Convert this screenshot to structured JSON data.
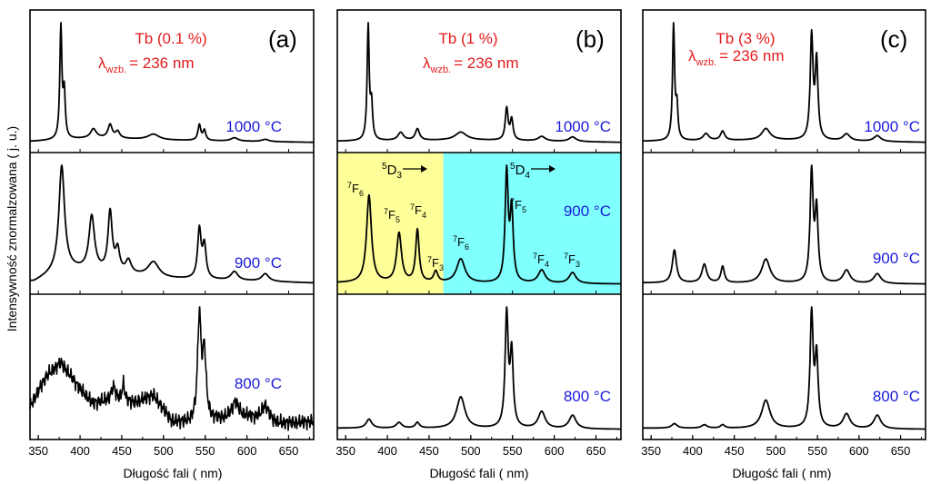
{
  "figure": {
    "ylabel": "Intensywność znormalzowana  ( j. u.)",
    "colors": {
      "curve": "#000000",
      "title": "#e41a1c",
      "temperature": "#1a1ad8",
      "region_5D3": "#ffff99",
      "region_5D4": "#80ffff"
    }
  },
  "chart_data": [
    {
      "type": "line",
      "panel": "(a)",
      "title": "Tb (0.1 %)",
      "excitation": {
        "symbol": "λ",
        "subscript": "wzb.",
        "value": "= 236 nm"
      },
      "xlabel": "Długość fali  ( nm)",
      "xlim": [
        340,
        680
      ],
      "xticks": [
        350,
        400,
        450,
        500,
        550,
        600,
        650
      ],
      "series": [
        {
          "name": "1000 °C",
          "temp": "1000",
          "unit": "°C",
          "peaks": [
            [
              377,
              1.0,
              1.5
            ],
            [
              381,
              0.4,
              1.5
            ],
            [
              416,
              0.08,
              4
            ],
            [
              436,
              0.12,
              3
            ],
            [
              445,
              0.06,
              3
            ],
            [
              488,
              0.05,
              8
            ],
            [
              543,
              0.14,
              2
            ],
            [
              549,
              0.09,
              2
            ],
            [
              585,
              0.03,
              5
            ],
            [
              622,
              0.02,
              5
            ]
          ],
          "baseline": [
            [
              345,
              0.02
            ],
            [
              420,
              0.05
            ],
            [
              500,
              0.03
            ],
            [
              680,
              0.01
            ]
          ]
        },
        {
          "name": "900 °C",
          "temp": "900",
          "unit": "°C",
          "peaks": [
            [
              378,
              0.95,
              4
            ],
            [
              414,
              0.5,
              4
            ],
            [
              436,
              0.55,
              3
            ],
            [
              445,
              0.2,
              3
            ],
            [
              458,
              0.12,
              4
            ],
            [
              488,
              0.14,
              8
            ],
            [
              543,
              0.45,
              2.5
            ],
            [
              549,
              0.3,
              2.5
            ],
            [
              585,
              0.08,
              5
            ],
            [
              622,
              0.07,
              5
            ]
          ],
          "baseline": [
            [
              345,
              0.03
            ],
            [
              380,
              0.15
            ],
            [
              420,
              0.12
            ],
            [
              500,
              0.06
            ],
            [
              680,
              0.02
            ]
          ]
        },
        {
          "name": "800 °C",
          "temp": "800",
          "unit": "°C",
          "peaks": [
            [
              543,
              0.95,
              2.5
            ],
            [
              549,
              0.6,
              2.5
            ],
            [
              586,
              0.15,
              5
            ],
            [
              622,
              0.14,
              5
            ],
            [
              440,
              0.12,
              3
            ],
            [
              452,
              0.15,
              2
            ]
          ],
          "baseline": [
            [
              340,
              0.22
            ],
            [
              360,
              0.5
            ],
            [
              377,
              0.62
            ],
            [
              400,
              0.38
            ],
            [
              415,
              0.25
            ],
            [
              440,
              0.28
            ],
            [
              465,
              0.25
            ],
            [
              488,
              0.32
            ],
            [
              510,
              0.08
            ],
            [
              530,
              0.06
            ],
            [
              600,
              0.12
            ],
            [
              640,
              0.06
            ],
            [
              680,
              0.08
            ]
          ],
          "noisy": true
        }
      ]
    },
    {
      "type": "line",
      "panel": "(b)",
      "title": "Tb (1 %)",
      "excitation": {
        "symbol": "λ",
        "subscript": "wzb.",
        "value": "= 236 nm"
      },
      "xlabel": "Długość fali  ( nm)",
      "xlim": [
        340,
        680
      ],
      "xticks": [
        350,
        400,
        450,
        500,
        550,
        600,
        650
      ],
      "regions": [
        {
          "label": "5D3",
          "from": 340,
          "to": 467
        },
        {
          "label": "5D4",
          "from": 467,
          "to": 680
        }
      ],
      "series": [
        {
          "name": "1000 °C",
          "temp": "1000",
          "unit": "°C",
          "peaks": [
            [
              377,
              1.0,
              1.5
            ],
            [
              381,
              0.3,
              1.5
            ],
            [
              416,
              0.07,
              4
            ],
            [
              436,
              0.1,
              3
            ],
            [
              488,
              0.07,
              8
            ],
            [
              543,
              0.28,
              2
            ],
            [
              549,
              0.18,
              2
            ],
            [
              585,
              0.04,
              5
            ],
            [
              622,
              0.04,
              5
            ]
          ],
          "baseline": [
            [
              345,
              0.02
            ],
            [
              500,
              0.03
            ],
            [
              680,
              0.01
            ]
          ]
        },
        {
          "name": "900 °C",
          "temp": "900",
          "unit": "°C",
          "peaks": [
            [
              378,
              0.8,
              3.5
            ],
            [
              414,
              0.45,
              3.5
            ],
            [
              436,
              0.48,
              2.5
            ],
            [
              458,
              0.1,
              3
            ],
            [
              488,
              0.22,
              6
            ],
            [
              543,
              1.0,
              2.2
            ],
            [
              549,
              0.65,
              2.2
            ],
            [
              585,
              0.12,
              5
            ],
            [
              622,
              0.1,
              5
            ]
          ],
          "baseline": [
            [
              345,
              0.02
            ],
            [
              680,
              0.01
            ]
          ]
        },
        {
          "name": "800 °C",
          "temp": "800",
          "unit": "°C",
          "peaks": [
            [
              378,
              0.08,
              4
            ],
            [
              414,
              0.05,
              4
            ],
            [
              436,
              0.05,
              3
            ],
            [
              488,
              0.28,
              6
            ],
            [
              543,
              1.0,
              2.2
            ],
            [
              549,
              0.65,
              2.2
            ],
            [
              585,
              0.15,
              5
            ],
            [
              622,
              0.12,
              5
            ]
          ],
          "baseline": [
            [
              345,
              0.02
            ],
            [
              680,
              0.01
            ]
          ]
        }
      ],
      "annotations": {
        "d3": {
          "sup": "5",
          "main": "D",
          "sub": "3"
        },
        "d4": {
          "sup": "5",
          "main": "D",
          "sub": "4"
        },
        "f6a": {
          "sup": "7",
          "main": "F",
          "sub": "6"
        },
        "f5a": {
          "sup": "7",
          "main": "F",
          "sub": "5"
        },
        "f4a": {
          "sup": "7",
          "main": "F",
          "sub": "4"
        },
        "f3a": {
          "sup": "7",
          "main": "F",
          "sub": "3"
        },
        "f6b": {
          "sup": "7",
          "main": "F",
          "sub": "6"
        },
        "f5b": {
          "sup": "7",
          "main": "F",
          "sub": "5"
        },
        "f4b": {
          "sup": "7",
          "main": "F",
          "sub": "4"
        },
        "f3b": {
          "sup": "7",
          "main": "F",
          "sub": "3"
        }
      }
    },
    {
      "type": "line",
      "panel": "(c)",
      "title": "Tb (3 %)",
      "excitation": {
        "symbol": "λ",
        "subscript": "wzb.",
        "value": "= 236 nm"
      },
      "xlabel": "Długość fali  ( nm)",
      "xlim": [
        340,
        680
      ],
      "xticks": [
        350,
        400,
        450,
        500,
        550,
        600,
        650
      ],
      "series": [
        {
          "name": "1000 °C",
          "temp": "1000",
          "unit": "°C",
          "peaks": [
            [
              377,
              1.0,
              1.5
            ],
            [
              381,
              0.28,
              1.5
            ],
            [
              416,
              0.06,
              4
            ],
            [
              436,
              0.08,
              3
            ],
            [
              488,
              0.1,
              6
            ],
            [
              543,
              0.9,
              2
            ],
            [
              549,
              0.68,
              2
            ],
            [
              585,
              0.06,
              5
            ],
            [
              622,
              0.05,
              5
            ]
          ],
          "baseline": [
            [
              345,
              0.02
            ],
            [
              500,
              0.03
            ],
            [
              680,
              0.01
            ]
          ]
        },
        {
          "name": "900 °C",
          "temp": "900",
          "unit": "°C",
          "peaks": [
            [
              378,
              0.3,
              3
            ],
            [
              414,
              0.17,
              3.5
            ],
            [
              436,
              0.15,
              2.5
            ],
            [
              488,
              0.22,
              6
            ],
            [
              543,
              1.0,
              2.2
            ],
            [
              549,
              0.65,
              2.2
            ],
            [
              585,
              0.12,
              5
            ],
            [
              622,
              0.09,
              5
            ]
          ],
          "baseline": [
            [
              345,
              0.02
            ],
            [
              680,
              0.01
            ]
          ]
        },
        {
          "name": "800 °C",
          "temp": "800",
          "unit": "°C",
          "peaks": [
            [
              378,
              0.04,
              4
            ],
            [
              414,
              0.03,
              4
            ],
            [
              436,
              0.03,
              3
            ],
            [
              488,
              0.25,
              6
            ],
            [
              543,
              1.0,
              2.2
            ],
            [
              549,
              0.62,
              2.2
            ],
            [
              585,
              0.13,
              5
            ],
            [
              622,
              0.12,
              5
            ]
          ],
          "baseline": [
            [
              345,
              0.02
            ],
            [
              680,
              0.01
            ]
          ]
        }
      ]
    }
  ]
}
